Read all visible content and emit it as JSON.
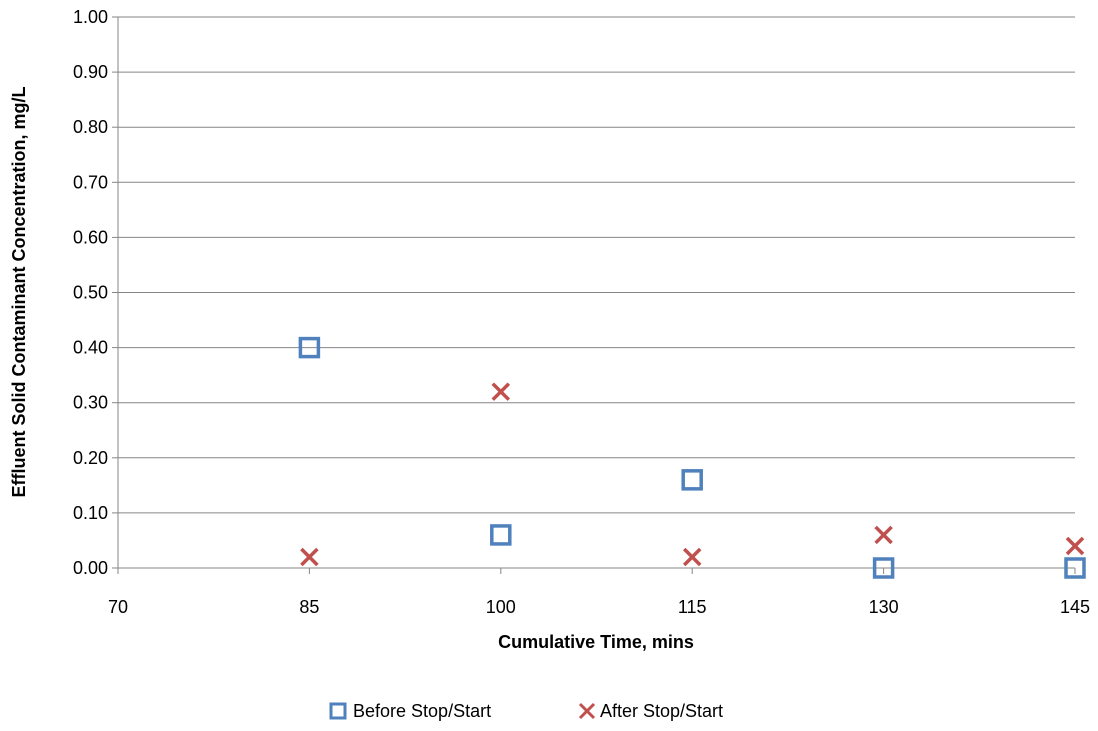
{
  "chart_data": {
    "type": "scatter",
    "title": "",
    "xlabel": "Cumulative Time, mins",
    "ylabel": "Effluent Solid Contaminant Concentration, mg/L",
    "xlim": [
      70,
      145
    ],
    "ylim": [
      0,
      1.0
    ],
    "xticks": [
      "70",
      "85",
      "100",
      "115",
      "130",
      "145"
    ],
    "yticks": [
      "0.00",
      "0.10",
      "0.20",
      "0.30",
      "0.40",
      "0.50",
      "0.60",
      "0.70",
      "0.80",
      "0.90",
      "1.00"
    ],
    "grid": "horizontal",
    "legend_position": "bottom",
    "series": [
      {
        "name": "Before Stop/Start",
        "marker": "square",
        "color": "#4F81BD",
        "x": [
          85,
          100,
          115,
          130,
          145
        ],
        "y": [
          0.4,
          0.06,
          0.16,
          0.0,
          0.0
        ]
      },
      {
        "name": "After Stop/Start",
        "marker": "x",
        "color": "#C0504D",
        "x": [
          85,
          100,
          115,
          130,
          145
        ],
        "y": [
          0.02,
          0.32,
          0.02,
          0.06,
          0.04
        ]
      }
    ]
  }
}
